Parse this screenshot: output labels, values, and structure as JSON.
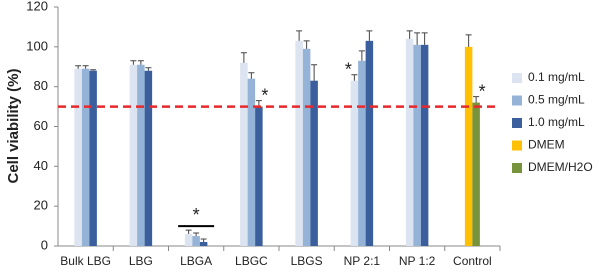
{
  "chart_data": {
    "type": "bar",
    "y_label": "Cell viability (%)",
    "categories": [
      "Bulk LBG",
      "LBG",
      "LBGA",
      "LBGC",
      "LBGS",
      "NP 2:1",
      "NP 1:2",
      "Control"
    ],
    "series": [
      {
        "name": "0.1 mg/mL",
        "color": "#dce4f1",
        "values": [
          89,
          91,
          6,
          92,
          103,
          83,
          104,
          null
        ],
        "errors": [
          1.5,
          2,
          2,
          5,
          5,
          3,
          4,
          null
        ]
      },
      {
        "name": "0.5 mg/mL",
        "color": "#95b3d7",
        "values": [
          89,
          91,
          5,
          84,
          99,
          93,
          101,
          null
        ],
        "errors": [
          1.5,
          2,
          1.5,
          3,
          4,
          5,
          6,
          null
        ]
      },
      {
        "name": "1.0 mg/mL",
        "color": "#3b5f9d",
        "values": [
          88,
          88,
          2,
          70,
          83,
          103,
          101,
          null
        ],
        "errors": [
          0.5,
          1.5,
          1.5,
          3,
          8,
          5,
          6,
          null
        ]
      },
      {
        "name": "DMEM",
        "color": "#ffc000",
        "values": [
          null,
          null,
          null,
          null,
          null,
          null,
          null,
          100
        ],
        "errors": [
          null,
          null,
          null,
          null,
          null,
          null,
          null,
          6
        ]
      },
      {
        "name": "DMEM/H2O",
        "color": "#77933c",
        "values": [
          null,
          null,
          null,
          null,
          null,
          null,
          null,
          72
        ],
        "errors": [
          null,
          null,
          null,
          null,
          null,
          null,
          null,
          3
        ]
      }
    ],
    "threshold": 70,
    "threshold_color": "#e8282a",
    "annotations": [
      {
        "text": "*",
        "category": "LBGA"
      },
      {
        "text": "*",
        "category": "LBGC",
        "series": "1.0 mg/mL"
      },
      {
        "text": "*",
        "category": "NP 2:1",
        "series": "0.1 mg/mL"
      },
      {
        "text": "*",
        "category": "Control",
        "series": "DMEM/H2O"
      }
    ],
    "ylim": [
      0,
      120
    ],
    "yticks": [
      0,
      20,
      40,
      60,
      80,
      100,
      120
    ]
  }
}
